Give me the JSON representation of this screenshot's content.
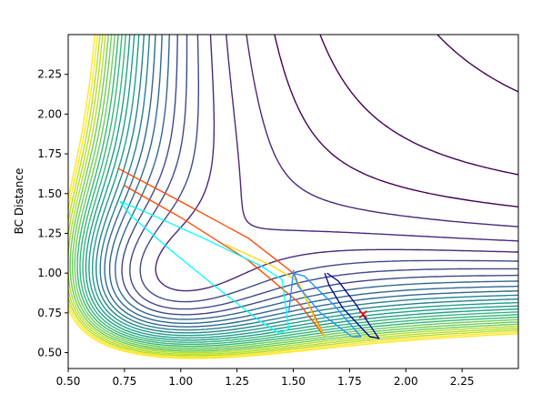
{
  "chart_data": {
    "type": "contour",
    "title": "",
    "xlabel": "",
    "ylabel": "BC Distance",
    "xlim": [
      0.5,
      2.5
    ],
    "ylim": [
      0.4,
      2.5
    ],
    "xticks": [
      "0.50",
      "0.75",
      "1.00",
      "1.25",
      "1.50",
      "1.75",
      "2.00",
      "2.25"
    ],
    "yticks": [
      "0.50",
      "0.75",
      "1.00",
      "1.25",
      "1.50",
      "1.75",
      "2.00",
      "2.25"
    ],
    "grid": false,
    "legend": "none",
    "colormap": [
      "#440154",
      "#482878",
      "#3e4989",
      "#31688e",
      "#26828e",
      "#1f9e89",
      "#35b779",
      "#6ece58",
      "#b5de2b",
      "#fde725"
    ],
    "marker": {
      "x": 1.81,
      "y": 0.74,
      "symbol": "x",
      "color": "#ff0000"
    },
    "trajectories": [
      {
        "color": "#ff4500",
        "points": [
          [
            0.72,
            1.66
          ],
          [
            1.0,
            1.45
          ],
          [
            1.3,
            1.22
          ],
          [
            1.5,
            1.0
          ],
          [
            1.64,
            0.6
          ],
          [
            1.52,
            0.82
          ],
          [
            1.3,
            1.08
          ],
          [
            1.0,
            1.35
          ],
          [
            0.75,
            1.55
          ]
        ]
      },
      {
        "color": "#00ffff",
        "points": [
          [
            0.73,
            1.45
          ],
          [
            0.85,
            1.38
          ],
          [
            1.1,
            1.22
          ],
          [
            1.35,
            1.05
          ],
          [
            1.45,
            0.96
          ],
          [
            1.48,
            0.65
          ],
          [
            1.44,
            0.62
          ],
          [
            1.35,
            0.7
          ],
          [
            1.15,
            0.92
          ],
          [
            0.95,
            1.15
          ],
          [
            0.78,
            1.36
          ],
          [
            0.73,
            1.45
          ]
        ]
      },
      {
        "color": "#ffd700",
        "points": [
          [
            1.2,
            1.18
          ],
          [
            1.4,
            1.05
          ],
          [
            1.52,
            0.95
          ],
          [
            1.6,
            0.7
          ],
          [
            1.64,
            0.6
          ]
        ]
      },
      {
        "color": "#1e90ff",
        "points": [
          [
            1.48,
            0.75
          ],
          [
            1.5,
            1.0
          ],
          [
            1.55,
            0.98
          ],
          [
            1.68,
            0.8
          ],
          [
            1.8,
            0.6
          ],
          [
            1.76,
            0.6
          ],
          [
            1.62,
            0.75
          ],
          [
            1.52,
            0.92
          ],
          [
            1.5,
            1.02
          ]
        ]
      },
      {
        "color": "#00008b",
        "points": [
          [
            1.65,
            1.0
          ],
          [
            1.7,
            0.95
          ],
          [
            1.78,
            0.8
          ],
          [
            1.88,
            0.59
          ],
          [
            1.84,
            0.6
          ],
          [
            1.72,
            0.78
          ],
          [
            1.66,
            0.92
          ],
          [
            1.64,
            1.0
          ]
        ]
      }
    ]
  }
}
